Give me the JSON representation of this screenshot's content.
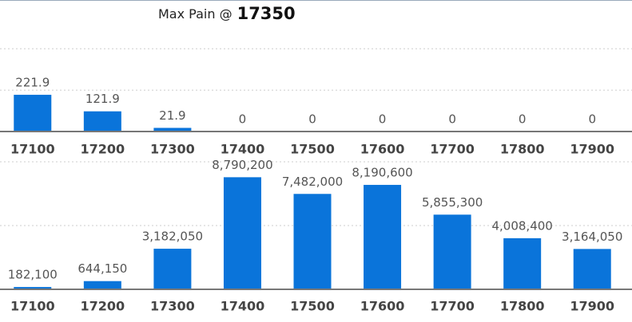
{
  "chart_data": [
    {
      "type": "bar",
      "title": "Max Pain @",
      "title_value": 17350,
      "categories": [
        "17100",
        "17200",
        "17300",
        "17400",
        "17500",
        "17600",
        "17700",
        "17800",
        "17900"
      ],
      "values": [
        221.9,
        121.9,
        21.9,
        0,
        0,
        0,
        0,
        0,
        0
      ],
      "color": "#0a74da",
      "ylim": [
        0,
        520
      ],
      "yticks": [
        0,
        250,
        500
      ],
      "grid": true,
      "tick_labels": false
    },
    {
      "type": "bar",
      "categories": [
        "17100",
        "17200",
        "17300",
        "17400",
        "17500",
        "17600",
        "17700",
        "17800",
        "17900"
      ],
      "values": [
        182100,
        644150,
        3182050,
        8790200,
        7482000,
        8190600,
        5855300,
        4008400,
        3164050
      ],
      "value_labels": [
        "182,100",
        "644,150",
        "3,182,050",
        "8,790,200",
        "7,482,000",
        "8,190,600",
        "5,855,300",
        "4,008,400",
        "3,164,050"
      ],
      "color": "#0a74da",
      "ylim": [
        0,
        10000000
      ],
      "yticks": [
        0,
        5000000,
        10000000
      ],
      "grid": true,
      "tick_labels": false
    }
  ]
}
